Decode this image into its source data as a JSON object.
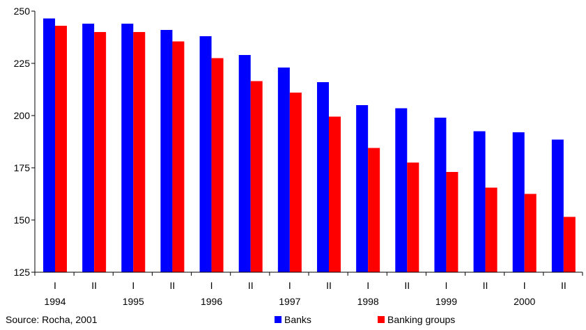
{
  "source": "Source: Rocha, 2001",
  "colors": {
    "banks": "#0000ff",
    "banking_groups": "#ff0000",
    "axis": "#000000"
  },
  "chart_data": {
    "type": "bar",
    "title": "",
    "xlabel": "",
    "ylabel": "",
    "ylim": [
      125,
      250
    ],
    "yticks": [
      125,
      150,
      175,
      200,
      225,
      250
    ],
    "grid": false,
    "legend_position": "bottom",
    "categories": [
      "I",
      "II",
      "I",
      "II",
      "I",
      "II",
      "I",
      "II",
      "I",
      "II",
      "I",
      "II",
      "I",
      "II"
    ],
    "years": [
      "1994",
      "1995",
      "1996",
      "1997",
      "1998",
      "1999",
      "2000"
    ],
    "series": [
      {
        "name": "Banks",
        "color": "#0000ff",
        "values": [
          246.5,
          244,
          244,
          241,
          238,
          229,
          223,
          216,
          205,
          203.5,
          199,
          192.5,
          192,
          188.5
        ]
      },
      {
        "name": "Banking groups",
        "color": "#ff0000",
        "values": [
          243,
          240,
          240,
          235.5,
          227.5,
          216.5,
          211,
          199.5,
          184.5,
          177.5,
          173,
          165.5,
          162.5,
          151.5
        ]
      }
    ]
  }
}
